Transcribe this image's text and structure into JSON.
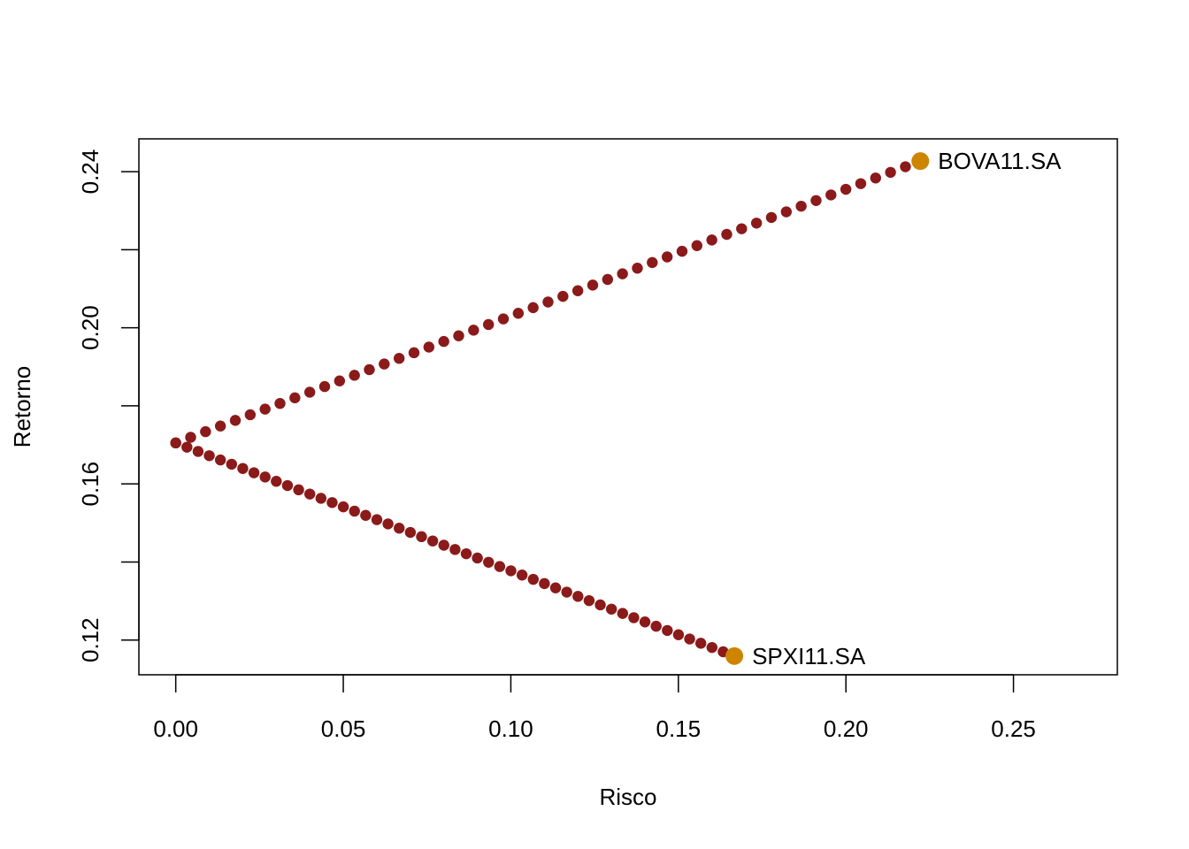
{
  "chart_data": {
    "type": "scatter",
    "title": "",
    "xlabel": "Risco",
    "ylabel": "Retorno",
    "xlim": [
      -0.011,
      0.281
    ],
    "ylim": [
      0.1111,
      0.2484
    ],
    "x_ticks": [
      0.0,
      0.05,
      0.1,
      0.15,
      0.2,
      0.25
    ],
    "x_tick_labels": [
      "0.00",
      "0.05",
      "0.10",
      "0.15",
      "0.20",
      "0.25"
    ],
    "y_ticks": [
      0.12,
      0.14,
      0.16,
      0.18,
      0.2,
      0.22,
      0.24
    ],
    "y_tick_labels": [
      "0.12",
      "",
      "0.16",
      "",
      "0.20",
      "",
      "0.24"
    ],
    "grid": false,
    "frontier": {
      "color": "#8b1a1a",
      "min_risk_point": {
        "x": 0.0,
        "y": 0.1705
      },
      "steps": 50,
      "upper_endpoint": {
        "x": 0.2222,
        "y": 0.2427
      },
      "lower_endpoint": {
        "x": 0.1667,
        "y": 0.1159
      }
    },
    "assets": [
      {
        "name": "BOVA11.SA",
        "x": 0.2222,
        "y": 0.2427,
        "color": "#cd8500"
      },
      {
        "name": "SPXI11.SA",
        "x": 0.1667,
        "y": 0.1159,
        "color": "#cd8500"
      }
    ]
  }
}
